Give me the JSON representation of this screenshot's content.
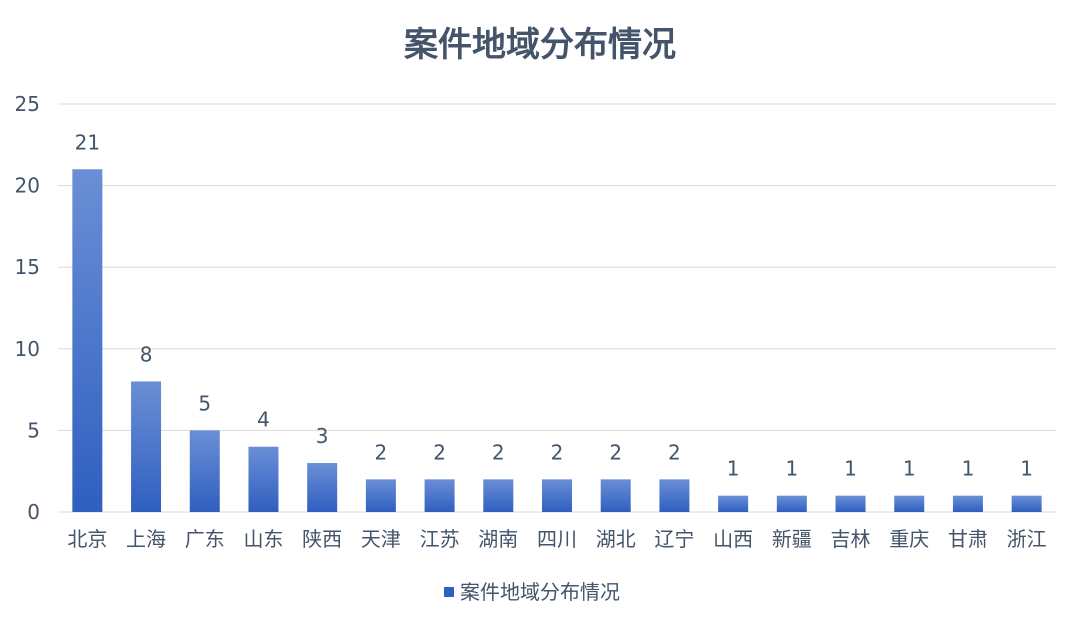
{
  "chart_data": {
    "type": "bar",
    "title": "案件地域分布情况",
    "categories": [
      "北京",
      "上海",
      "广东",
      "山东",
      "陕西",
      "天津",
      "江苏",
      "湖南",
      "四川",
      "湖北",
      "辽宁",
      "山西",
      "新疆",
      "吉林",
      "重庆",
      "甘肃",
      "浙江"
    ],
    "series": [
      {
        "name": "案件地域分布情况",
        "values": [
          21,
          8,
          5,
          4,
          3,
          2,
          2,
          2,
          2,
          2,
          2,
          1,
          1,
          1,
          1,
          1,
          1
        ]
      }
    ],
    "y_ticks": [
      0,
      5,
      10,
      15,
      20,
      25
    ],
    "ylim": [
      0,
      25
    ],
    "grid": true,
    "data_labels": true,
    "legend_position": "bottom",
    "colors": {
      "bar_top": "#6a8fd6",
      "bar_bottom": "#2f5fbf",
      "text": "#44546a",
      "grid": "#d9d9d9"
    }
  }
}
